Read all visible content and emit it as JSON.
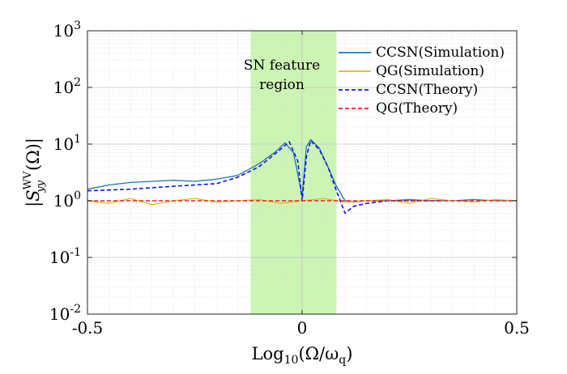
{
  "chart_data": {
    "type": "line",
    "xlabel": "Log10(Ω/ωq)",
    "ylabel": "|S_yy^WV(Ω)|",
    "xlim": [
      -0.5,
      0.5
    ],
    "ylim": [
      0.01,
      1000
    ],
    "yscale": "log",
    "grid": true,
    "legend_position": "top-right",
    "x_ticks": [
      {
        "value": -0.5,
        "label": "-0.5"
      },
      {
        "value": 0,
        "label": "0"
      },
      {
        "value": 0.5,
        "label": "0.5"
      }
    ],
    "y_ticks": [
      {
        "value": 0.01,
        "base": "10",
        "exp": "-2"
      },
      {
        "value": 0.1,
        "base": "10",
        "exp": "-1"
      },
      {
        "value": 1,
        "base": "10",
        "exp": "0"
      },
      {
        "value": 10,
        "base": "10",
        "exp": "1"
      },
      {
        "value": 100,
        "base": "10",
        "exp": "2"
      },
      {
        "value": 1000,
        "base": "10",
        "exp": "3"
      }
    ],
    "region": {
      "x_start": -0.12,
      "x_end": 0.08,
      "label_line1": "SN feature",
      "label_line2": "region",
      "color": "#ccf5b3"
    },
    "series": [
      {
        "name": "CCSN(Simulation)",
        "color": "#1f77b4",
        "style": "solid",
        "x": [
          -0.5,
          -0.45,
          -0.4,
          -0.35,
          -0.3,
          -0.25,
          -0.2,
          -0.15,
          -0.1,
          -0.06,
          -0.04,
          -0.02,
          0.0,
          0.01,
          0.02,
          0.04,
          0.06,
          0.08,
          0.1,
          0.12,
          0.15,
          0.2,
          0.25,
          0.3,
          0.35,
          0.4,
          0.45,
          0.5
        ],
        "values": [
          1.6,
          1.9,
          2.1,
          2.2,
          2.3,
          2.2,
          2.4,
          2.8,
          4.5,
          7.5,
          10.5,
          7.0,
          1.2,
          9.0,
          12.0,
          8.5,
          4.0,
          1.8,
          1.0,
          0.95,
          1.0,
          1.0,
          1.05,
          1.0,
          1.0,
          1.05,
          1.0,
          1.0
        ]
      },
      {
        "name": "QG(Simulation)",
        "color": "#e6b422",
        "style": "solid",
        "x": [
          -0.5,
          -0.45,
          -0.4,
          -0.35,
          -0.3,
          -0.25,
          -0.2,
          -0.15,
          -0.1,
          -0.05,
          0.0,
          0.05,
          0.1,
          0.15,
          0.2,
          0.25,
          0.3,
          0.35,
          0.4,
          0.45,
          0.5
        ],
        "values": [
          1.0,
          0.9,
          1.1,
          0.85,
          1.0,
          1.1,
          0.95,
          1.0,
          1.05,
          0.9,
          1.0,
          1.1,
          0.95,
          1.0,
          1.05,
          0.9,
          1.1,
          1.0,
          0.95,
          1.05,
          1.0
        ]
      },
      {
        "name": "CCSN(Theory)",
        "color": "#1515e0",
        "style": "dashed",
        "x": [
          -0.5,
          -0.4,
          -0.3,
          -0.2,
          -0.15,
          -0.1,
          -0.06,
          -0.03,
          -0.01,
          0.0,
          0.01,
          0.02,
          0.04,
          0.06,
          0.08,
          0.1,
          0.12,
          0.15,
          0.2,
          0.25,
          0.3,
          0.32
        ],
        "values": [
          1.5,
          1.6,
          1.8,
          2.0,
          2.6,
          4.0,
          7.0,
          11.0,
          5.0,
          1.0,
          6.0,
          11.5,
          8.0,
          4.0,
          1.5,
          0.6,
          0.8,
          0.9,
          1.0,
          1.0,
          1.0,
          1.0
        ]
      },
      {
        "name": "QG(Theory)",
        "color": "#e8231f",
        "style": "dashed",
        "x": [
          -0.5,
          0.5
        ],
        "values": [
          1.0,
          1.0
        ]
      }
    ]
  }
}
